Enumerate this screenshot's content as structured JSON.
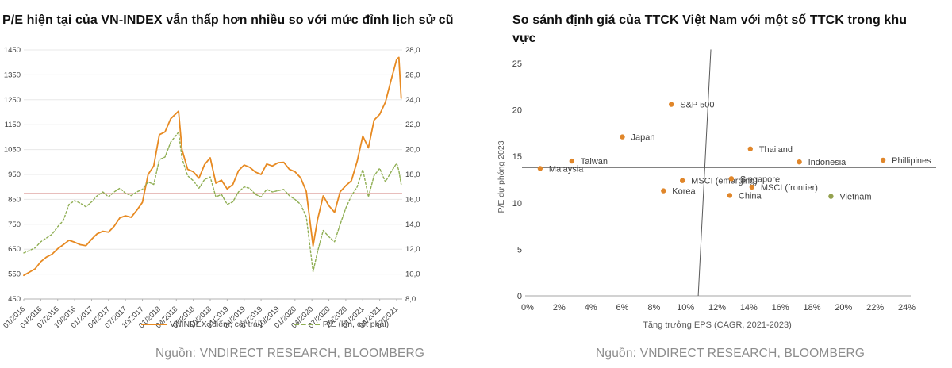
{
  "page": {
    "background": "#ffffff"
  },
  "left_chart": {
    "title": "P/E hiện tại của VN-INDEX vẫn thấp hơn nhiều so với mức đỉnh lịch sử cũ",
    "source": "Nguồn: VNDIRECT RESEARCH, BLOOMBERG",
    "legend": [
      {
        "label": "VNINDEX (điểm, cột trái)",
        "color": "#e78a22",
        "style": "solid"
      },
      {
        "label": "P/E (lần, cột phải)",
        "color": "#8fae53",
        "style": "dashed"
      }
    ]
  },
  "right_chart": {
    "title": "So sánh định giá của TTCK Việt Nam với một số TTCK trong khu vực",
    "source": "Nguồn: VNDIRECT RESEARCH, BLOOMBERG"
  },
  "chart_data": [
    {
      "type": "line",
      "title": "P/E hiện tại của VN-INDEX vẫn thấp hơn nhiều so với mức đỉnh lịch sử cũ",
      "x_tick_labels": [
        "01/2016",
        "04/2016",
        "07/2016",
        "10/2016",
        "01/2017",
        "04/2017",
        "07/2017",
        "10/2017",
        "01/2018",
        "04/2018",
        "07/2018",
        "10/2018",
        "01/2019",
        "04/2019",
        "07/2019",
        "10/2019",
        "01/2020",
        "04/2020",
        "07/2020",
        "10/2020",
        "01/2021",
        "04/2021",
        "07/2021"
      ],
      "x_months_total": 66,
      "ylim_left": [
        450,
        1450
      ],
      "ytick_step_left": 100,
      "ylim_right": [
        8.0,
        28.0
      ],
      "ytick_step_right": 2.0,
      "right_tick_decimal": "comma",
      "grid": "horizontal",
      "legend_position": "bottom",
      "reference_line": {
        "axis": "right",
        "value": 16.45,
        "color": "#c0504d"
      },
      "series": [
        {
          "name": "VNINDEX (điểm, cột trái)",
          "axis": "left",
          "color": "#e78a22",
          "style": "solid",
          "points": [
            [
              0,
              545
            ],
            [
              1,
              558
            ],
            [
              2,
              571
            ],
            [
              3,
              600
            ],
            [
              4,
              618
            ],
            [
              5,
              630
            ],
            [
              6,
              652
            ],
            [
              7,
              668
            ],
            [
              8,
              686
            ],
            [
              9,
              678
            ],
            [
              10,
              668
            ],
            [
              11,
              664
            ],
            [
              12,
              690
            ],
            [
              13,
              712
            ],
            [
              14,
              722
            ],
            [
              15,
              718
            ],
            [
              16,
              742
            ],
            [
              17,
              776
            ],
            [
              18,
              784
            ],
            [
              19,
              778
            ],
            [
              20,
              806
            ],
            [
              21,
              838
            ],
            [
              22,
              950
            ],
            [
              23,
              984
            ],
            [
              24,
              1110
            ],
            [
              25,
              1121
            ],
            [
              26,
              1174
            ],
            [
              27.4,
              1204
            ],
            [
              28,
              1050
            ],
            [
              29,
              971
            ],
            [
              30,
              961
            ],
            [
              31,
              935
            ],
            [
              32,
              990
            ],
            [
              33,
              1017
            ],
            [
              34,
              915
            ],
            [
              35,
              927
            ],
            [
              36,
              892
            ],
            [
              37,
              910
            ],
            [
              38,
              965
            ],
            [
              39,
              988
            ],
            [
              40,
              979
            ],
            [
              41,
              960
            ],
            [
              42,
              950
            ],
            [
              43,
              992
            ],
            [
              44,
              984
            ],
            [
              45,
              997
            ],
            [
              46,
              999
            ],
            [
              47,
              971
            ],
            [
              48,
              961
            ],
            [
              49,
              937
            ],
            [
              50,
              882
            ],
            [
              51.2,
              663
            ],
            [
              52,
              769
            ],
            [
              53,
              864
            ],
            [
              54,
              825
            ],
            [
              55,
              798
            ],
            [
              56,
              881
            ],
            [
              57,
              905
            ],
            [
              58,
              925
            ],
            [
              59,
              1003
            ],
            [
              60,
              1104
            ],
            [
              61,
              1057
            ],
            [
              62,
              1168
            ],
            [
              63,
              1191
            ],
            [
              64,
              1240
            ],
            [
              65,
              1328
            ],
            [
              66,
              1412
            ],
            [
              66.4,
              1420
            ],
            [
              66.8,
              1256
            ]
          ]
        },
        {
          "name": "P/E (lần, cột phải)",
          "axis": "right",
          "color": "#8fae53",
          "style": "dashed",
          "points": [
            [
              0,
              11.7
            ],
            [
              1,
              11.9
            ],
            [
              2,
              12.1
            ],
            [
              3,
              12.6
            ],
            [
              4,
              12.9
            ],
            [
              5,
              13.2
            ],
            [
              6,
              13.8
            ],
            [
              7,
              14.3
            ],
            [
              8,
              15.6
            ],
            [
              9,
              15.9
            ],
            [
              10,
              15.7
            ],
            [
              11,
              15.4
            ],
            [
              12,
              15.8
            ],
            [
              13,
              16.3
            ],
            [
              14,
              16.6
            ],
            [
              15,
              16.2
            ],
            [
              16,
              16.6
            ],
            [
              17,
              16.9
            ],
            [
              18,
              16.5
            ],
            [
              19,
              16.3
            ],
            [
              20,
              16.6
            ],
            [
              21,
              16.8
            ],
            [
              22,
              17.4
            ],
            [
              23,
              17.2
            ],
            [
              24,
              19.2
            ],
            [
              25,
              19.4
            ],
            [
              26,
              20.6
            ],
            [
              27.4,
              21.4
            ],
            [
              28,
              19.3
            ],
            [
              29,
              17.9
            ],
            [
              30,
              17.5
            ],
            [
              31,
              16.9
            ],
            [
              32,
              17.6
            ],
            [
              33,
              17.8
            ],
            [
              34,
              16.2
            ],
            [
              35,
              16.4
            ],
            [
              36,
              15.6
            ],
            [
              37,
              15.8
            ],
            [
              38,
              16.6
            ],
            [
              39,
              17.0
            ],
            [
              40,
              16.9
            ],
            [
              41,
              16.4
            ],
            [
              42,
              16.2
            ],
            [
              43,
              16.8
            ],
            [
              44,
              16.6
            ],
            [
              45,
              16.7
            ],
            [
              46,
              16.8
            ],
            [
              47,
              16.3
            ],
            [
              48,
              16.0
            ],
            [
              49,
              15.6
            ],
            [
              50,
              14.6
            ],
            [
              51.2,
              10.2
            ],
            [
              52,
              11.8
            ],
            [
              53,
              13.5
            ],
            [
              54,
              13.0
            ],
            [
              55,
              12.6
            ],
            [
              56,
              14.0
            ],
            [
              57,
              15.3
            ],
            [
              58,
              16.3
            ],
            [
              59,
              17.0
            ],
            [
              60,
              18.4
            ],
            [
              61,
              16.2
            ],
            [
              62,
              17.9
            ],
            [
              63,
              18.5
            ],
            [
              64,
              17.4
            ],
            [
              65,
              18.2
            ],
            [
              66,
              18.9
            ],
            [
              66.4,
              18.3
            ],
            [
              66.8,
              17.2
            ]
          ]
        }
      ]
    },
    {
      "type": "scatter",
      "title": "So sánh định giá của TTCK Việt Nam với một số TTCK trong khu vực",
      "xlabel": "Tăng trưởng EPS (CAGR, 2021-2023)",
      "ylabel": "P/E dự phóng 2023",
      "xlim": [
        0,
        24
      ],
      "xtick_step": 2,
      "xtick_suffix": "%",
      "ylim": [
        0,
        25
      ],
      "ytick_step": 5,
      "grid": "off",
      "crosshair": {
        "y": 13.8,
        "x_top": 11.6,
        "x_bottom": 10.8,
        "top_value": 26.5,
        "color": "#595959"
      },
      "points": [
        {
          "label": "Malaysia",
          "x": 0.8,
          "y": 13.7,
          "color": "#e0862a"
        },
        {
          "label": "Taiwan",
          "x": 2.8,
          "y": 14.5,
          "color": "#e0862a"
        },
        {
          "label": "Japan",
          "x": 6.0,
          "y": 17.1,
          "color": "#e0862a"
        },
        {
          "label": "S&P 500",
          "x": 9.1,
          "y": 20.6,
          "color": "#e0862a"
        },
        {
          "label": "Korea",
          "x": 8.6,
          "y": 11.3,
          "color": "#e0862a"
        },
        {
          "label": "MSCI (emerging)",
          "x": 9.8,
          "y": 12.4,
          "color": "#e0862a"
        },
        {
          "label": "Singapore",
          "x": 12.9,
          "y": 12.6,
          "color": "#e0862a"
        },
        {
          "label": "China",
          "x": 12.8,
          "y": 10.8,
          "color": "#e0862a"
        },
        {
          "label": "MSCI (frontier)",
          "x": 14.2,
          "y": 11.7,
          "color": "#e0862a"
        },
        {
          "label": "Thailand",
          "x": 14.1,
          "y": 15.8,
          "color": "#e0862a"
        },
        {
          "label": "Indonesia",
          "x": 17.2,
          "y": 14.4,
          "color": "#e0862a"
        },
        {
          "label": "Phillipines",
          "x": 22.5,
          "y": 14.6,
          "color": "#e0862a"
        },
        {
          "label": "Vietnam",
          "x": 19.2,
          "y": 10.7,
          "color": "#94a14e"
        }
      ]
    }
  ]
}
